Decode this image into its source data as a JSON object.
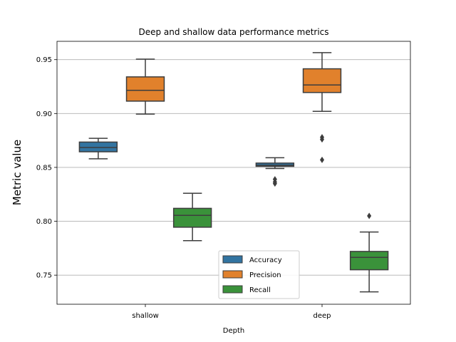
{
  "chart_data": {
    "type": "box",
    "title": "Deep and shallow data performance metrics",
    "xlabel": "Depth",
    "ylabel": "Metric value",
    "categories": [
      "shallow",
      "deep"
    ],
    "ylim": [
      0.723,
      0.967
    ],
    "yticks": [
      "0.75",
      "0.80",
      "0.85",
      "0.90",
      "0.95"
    ],
    "grid": "y",
    "legend": {
      "placement": "lower-center",
      "entries": [
        "Accuracy",
        "Precision",
        "Recall"
      ]
    },
    "series": [
      {
        "name": "Accuracy",
        "color": "#3274a1",
        "boxes": [
          {
            "whislo": 0.858,
            "q1": 0.8645,
            "med": 0.8685,
            "q3": 0.8735,
            "whishi": 0.877,
            "fliers": []
          },
          {
            "whislo": 0.849,
            "q1": 0.851,
            "med": 0.852,
            "q3": 0.854,
            "whishi": 0.859,
            "fliers": [
              0.839,
              0.8365,
              0.835
            ]
          }
        ]
      },
      {
        "name": "Precision",
        "color": "#e1812c",
        "boxes": [
          {
            "whislo": 0.8995,
            "q1": 0.9115,
            "med": 0.9215,
            "q3": 0.934,
            "whishi": 0.9505,
            "fliers": []
          },
          {
            "whislo": 0.902,
            "q1": 0.9195,
            "med": 0.9265,
            "q3": 0.9415,
            "whishi": 0.9565,
            "fliers": [
              0.878,
              0.876,
              0.857
            ]
          }
        ]
      },
      {
        "name": "Recall",
        "color": "#3a923a",
        "boxes": [
          {
            "whislo": 0.782,
            "q1": 0.7945,
            "med": 0.8055,
            "q3": 0.812,
            "whishi": 0.826,
            "fliers": []
          },
          {
            "whislo": 0.7345,
            "q1": 0.755,
            "med": 0.7665,
            "q3": 0.772,
            "whishi": 0.79,
            "fliers": [
              0.805
            ]
          }
        ]
      }
    ]
  }
}
